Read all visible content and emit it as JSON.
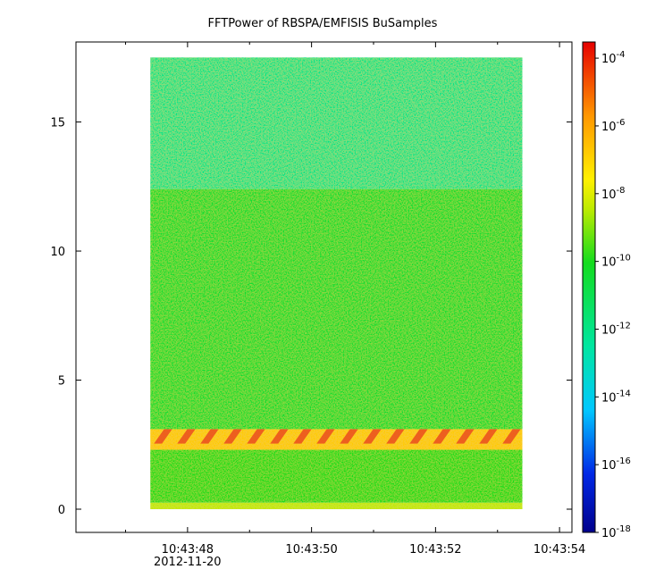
{
  "chart_data": {
    "type": "heatmap",
    "title": "FFTPower of RBSPA/EMFISIS  BuSamples",
    "xlabel": "",
    "ylabel": "",
    "date_label": "2012-11-20",
    "x_axis": {
      "range": [
        "10:43:46.2",
        "10:43:54.2"
      ],
      "major_ticks": [
        "10:43:48",
        "10:43:50",
        "10:43:52",
        "10:43:54"
      ],
      "minor_ticks": [
        "10:43:47",
        "10:43:49",
        "10:43:51",
        "10:43:53"
      ]
    },
    "y_axis": {
      "range": [
        -0.9,
        18.1
      ],
      "ticks": [
        0,
        5,
        10,
        15
      ],
      "tick_labels": [
        "0",
        "5",
        "10",
        "15"
      ]
    },
    "data_extent": {
      "x": [
        "10:43:47.4",
        "10:43:53.4"
      ],
      "y": [
        0,
        17.5
      ]
    },
    "colorbar": {
      "scale": "log",
      "range": [
        1e-18,
        0.0003
      ],
      "colormap": "blue-cyan-green-yellow-orange-red",
      "tick_labels": [
        {
          "value": 1e-18,
          "base": "10",
          "exp": "-18"
        },
        {
          "value": 1e-16,
          "base": "10",
          "exp": "-16"
        },
        {
          "value": 1e-14,
          "base": "10",
          "exp": "-14"
        },
        {
          "value": 1e-12,
          "base": "10",
          "exp": "-12"
        },
        {
          "value": 1e-10,
          "base": "10",
          "exp": "-10"
        },
        {
          "value": 1e-08,
          "base": "10",
          "exp": "-8"
        },
        {
          "value": 1e-06,
          "base": "10",
          "exp": "-6"
        },
        {
          "value": 0.0001,
          "base": "10",
          "exp": "-4"
        }
      ]
    },
    "bands": [
      {
        "y": [
          12.4,
          17.5
        ],
        "log_power": -12.0
      },
      {
        "y": [
          3.1,
          12.4
        ],
        "log_power": -10.4
      },
      {
        "y": [
          2.3,
          3.1
        ],
        "log_power": -6.8
      },
      {
        "y": [
          0.25,
          2.3
        ],
        "log_power": -10.0
      },
      {
        "y": [
          0,
          0.25
        ],
        "log_power": -8.4
      }
    ]
  }
}
